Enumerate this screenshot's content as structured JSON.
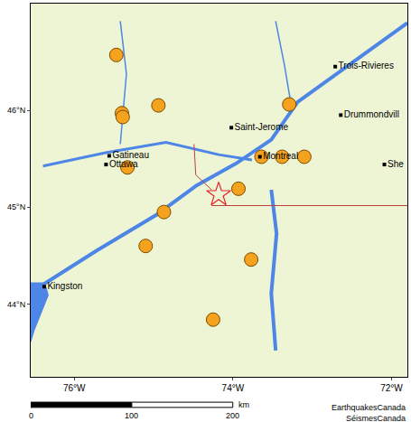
{
  "chart_data": {
    "type": "scatter",
    "xlim": [
      -76.55,
      -71.8
    ],
    "ylim": [
      43.25,
      47.1
    ],
    "xticks": [
      {
        "value": -76,
        "label": "76°W"
      },
      {
        "value": -74,
        "label": "74°W"
      },
      {
        "value": -72,
        "label": "72°W"
      }
    ],
    "yticks": [
      {
        "value": 44,
        "label": "44°N"
      },
      {
        "value": 45,
        "label": "45°N"
      },
      {
        "value": 46,
        "label": "46°N"
      }
    ],
    "grid": false,
    "earthquakes": {
      "x": [
        -75.47,
        -75.4,
        -75.39,
        -74.94,
        -73.29,
        -73.64,
        -73.38,
        -73.1,
        -75.33,
        -73.93,
        -74.87,
        -75.1,
        -73.77,
        -74.25
      ],
      "y": [
        46.57,
        45.97,
        45.93,
        46.05,
        46.06,
        45.52,
        45.52,
        45.52,
        45.41,
        45.19,
        44.95,
        44.6,
        44.46,
        43.84
      ],
      "color": "#f5a31f",
      "marker": "circle"
    },
    "epicenter": {
      "x": [
        -74.18
      ],
      "y": [
        45.13
      ],
      "color": "#e8202a",
      "marker": "star-open"
    },
    "cities": {
      "x": [
        -72.71,
        -72.64,
        -74.02,
        -75.56,
        -75.6,
        -73.66,
        -72.09,
        -76.38
      ],
      "y": [
        46.45,
        45.95,
        45.82,
        45.53,
        45.44,
        45.52,
        45.44,
        44.18
      ],
      "labels": [
        "Trois-Rivieres",
        "Drummondvill",
        "Saint-Jerome",
        "Gatineau",
        "Ottawa",
        "Montreal",
        "She",
        "Kingston"
      ],
      "color": "#000000",
      "marker": "square"
    },
    "scale_bar": {
      "ticks": [
        0,
        100,
        200
      ],
      "unit": "km"
    },
    "credits": [
      "EarthquakesCanada",
      "SéismesCanada"
    ]
  }
}
